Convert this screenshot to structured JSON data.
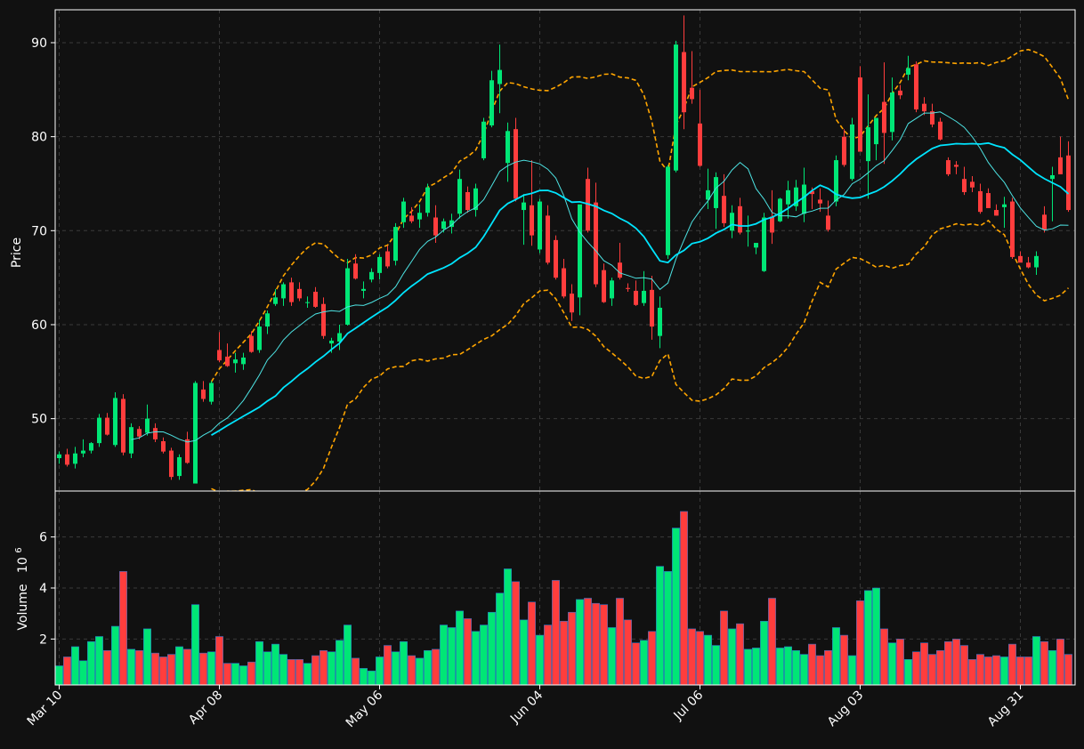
{
  "chart_data": {
    "type": "candlestick",
    "price_panel": {
      "ylabel": "Price",
      "ylim": [
        42.3,
        93.5
      ],
      "yticks": [
        50,
        60,
        70,
        80,
        90
      ],
      "grid": true
    },
    "volume_panel": {
      "ylabel": "Volume",
      "ylabel_multiplier": "10",
      "ylabel_exponent": "6",
      "ylim": [
        0.2,
        7.8
      ],
      "yticks": [
        2,
        4,
        6
      ],
      "grid": true
    },
    "x_tick_labels": [
      "Mar 10",
      "Apr 08",
      "May 06",
      "Jun 04",
      "Jul 06",
      "Aug 03",
      "Aug 31"
    ],
    "x_tick_indices": [
      0,
      20,
      40,
      60,
      80,
      100,
      120
    ],
    "series_styles": {
      "up_color": "#00e676",
      "down_color": "#ff3d3d",
      "bollinger_color": "#ffa500",
      "ma_short_color": "#4de3e3",
      "ma_long_color": "#00e5ff"
    },
    "ohlc": [
      [
        45.8,
        46.5,
        45.2,
        46.2
      ],
      [
        46.2,
        46.8,
        44.9,
        45.1
      ],
      [
        45.2,
        47.0,
        44.7,
        46.3
      ],
      [
        46.3,
        47.8,
        45.9,
        46.6
      ],
      [
        46.6,
        47.5,
        46.3,
        47.4
      ],
      [
        47.4,
        50.5,
        47.0,
        50.1
      ],
      [
        50.1,
        50.6,
        48.2,
        48.3
      ],
      [
        47.2,
        52.8,
        47.0,
        52.2
      ],
      [
        52.1,
        52.6,
        46.1,
        46.4
      ],
      [
        46.3,
        49.5,
        45.8,
        49.1
      ],
      [
        48.9,
        49.2,
        47.8,
        48.1
      ],
      [
        48.5,
        51.5,
        48.2,
        50.0
      ],
      [
        49.0,
        49.5,
        47.5,
        47.8
      ],
      [
        47.6,
        48.0,
        46.3,
        46.5
      ],
      [
        46.6,
        46.9,
        43.5,
        43.8
      ],
      [
        43.9,
        46.2,
        43.5,
        45.9
      ],
      [
        47.8,
        48.6,
        45.2,
        45.3
      ],
      [
        43.1,
        54.0,
        43.1,
        53.8
      ],
      [
        53.1,
        54.0,
        51.8,
        52.1
      ],
      [
        51.8,
        54.0,
        51.5,
        53.8
      ],
      [
        57.3,
        59.2,
        56.0,
        56.2
      ],
      [
        56.6,
        58.0,
        55.5,
        55.6
      ],
      [
        55.9,
        57.0,
        54.9,
        56.3
      ],
      [
        55.8,
        57.0,
        55.2,
        56.5
      ],
      [
        58.8,
        59.3,
        57.0,
        57.1
      ],
      [
        57.3,
        60.5,
        57.0,
        59.8
      ],
      [
        59.8,
        61.5,
        59.0,
        61.2
      ],
      [
        62.2,
        63.8,
        62.0,
        62.9
      ],
      [
        62.8,
        64.5,
        62.0,
        64.3
      ],
      [
        64.5,
        65.0,
        62.0,
        62.4
      ],
      [
        63.8,
        64.5,
        62.5,
        62.8
      ],
      [
        62.3,
        63.0,
        61.8,
        62.4
      ],
      [
        63.5,
        64.0,
        61.8,
        61.9
      ],
      [
        62.2,
        62.9,
        58.5,
        58.8
      ],
      [
        58.0,
        58.6,
        57.0,
        58.3
      ],
      [
        58.2,
        60.0,
        57.3,
        59.1
      ],
      [
        60.0,
        67.0,
        59.9,
        66.0
      ],
      [
        66.5,
        67.5,
        64.8,
        64.9
      ],
      [
        63.6,
        64.6,
        62.8,
        63.8
      ],
      [
        64.8,
        66.0,
        64.5,
        65.6
      ],
      [
        65.5,
        67.5,
        64.8,
        67.2
      ],
      [
        67.8,
        68.4,
        66.0,
        66.2
      ],
      [
        66.8,
        70.8,
        66.3,
        70.4
      ],
      [
        70.9,
        73.5,
        70.3,
        73.1
      ],
      [
        71.6,
        72.5,
        70.8,
        71.0
      ],
      [
        71.2,
        72.8,
        70.3,
        71.9
      ],
      [
        71.9,
        75.0,
        71.5,
        74.6
      ],
      [
        71.4,
        72.7,
        68.7,
        69.5
      ],
      [
        70.2,
        71.3,
        69.8,
        71.0
      ],
      [
        70.4,
        71.8,
        69.7,
        71.1
      ],
      [
        71.8,
        76.5,
        71.3,
        75.5
      ],
      [
        74.1,
        74.7,
        71.9,
        72.2
      ],
      [
        72.2,
        75.0,
        71.5,
        74.5
      ],
      [
        77.7,
        82.0,
        77.5,
        81.6
      ],
      [
        81.2,
        87.0,
        81.0,
        86.0
      ],
      [
        85.6,
        89.8,
        82.5,
        87.1
      ],
      [
        77.2,
        81.5,
        75.2,
        80.6
      ],
      [
        80.8,
        82.0,
        73.1,
        73.4
      ],
      [
        72.2,
        73.9,
        68.5,
        73.0
      ],
      [
        72.7,
        77.5,
        68.4,
        69.5
      ],
      [
        68.0,
        73.4,
        67.6,
        73.1
      ],
      [
        71.6,
        72.7,
        66.4,
        66.6
      ],
      [
        69.0,
        69.5,
        64.8,
        65.0
      ],
      [
        66.0,
        67.0,
        62.8,
        63.0
      ],
      [
        63.3,
        64.3,
        60.4,
        61.3
      ],
      [
        62.9,
        72.5,
        61.0,
        72.8
      ],
      [
        75.5,
        76.7,
        69.8,
        70.0
      ],
      [
        73.0,
        75.1,
        64.0,
        64.3
      ],
      [
        65.8,
        66.5,
        62.3,
        62.4
      ],
      [
        62.8,
        65.0,
        62.0,
        64.7
      ],
      [
        66.6,
        68.7,
        64.8,
        65.0
      ],
      [
        63.9,
        64.4,
        63.5,
        63.8
      ],
      [
        63.6,
        64.7,
        62.0,
        62.1
      ],
      [
        62.3,
        65.7,
        62.0,
        63.6
      ],
      [
        63.7,
        65.2,
        58.4,
        59.8
      ],
      [
        58.8,
        63.0,
        57.5,
        61.8
      ],
      [
        67.4,
        77.0,
        67.0,
        76.8
      ],
      [
        76.4,
        90.2,
        76.2,
        89.8
      ],
      [
        89.0,
        92.9,
        80.8,
        82.6
      ],
      [
        85.2,
        89.1,
        83.5,
        84.0
      ],
      [
        81.4,
        85.0,
        76.8,
        76.9
      ],
      [
        73.3,
        76.6,
        72.3,
        74.3
      ],
      [
        72.4,
        76.2,
        70.2,
        75.7
      ],
      [
        73.7,
        76.0,
        70.4,
        70.8
      ],
      [
        70.0,
        72.7,
        69.2,
        71.9
      ],
      [
        72.6,
        73.5,
        69.6,
        69.8
      ],
      [
        70.0,
        71.6,
        68.3,
        70.0
      ],
      [
        68.2,
        68.6,
        67.5,
        68.7
      ],
      [
        65.7,
        71.9,
        65.6,
        71.4
      ],
      [
        71.5,
        74.3,
        68.6,
        69.8
      ],
      [
        71.0,
        73.5,
        70.9,
        73.4
      ],
      [
        72.8,
        75.3,
        71.3,
        74.3
      ],
      [
        72.6,
        75.4,
        72.1,
        74.6
      ],
      [
        71.8,
        76.7,
        70.9,
        74.9
      ],
      [
        74.2,
        74.6,
        72.3,
        73.9
      ],
      [
        73.3,
        74.5,
        72.0,
        72.9
      ],
      [
        71.6,
        73.2,
        69.9,
        70.1
      ],
      [
        73.1,
        78.0,
        72.6,
        77.5
      ],
      [
        80.0,
        80.8,
        76.8,
        77.0
      ],
      [
        75.5,
        82.0,
        75.3,
        81.3
      ],
      [
        86.3,
        87.5,
        78.5,
        78.4
      ],
      [
        77.4,
        84.5,
        73.4,
        81.0
      ],
      [
        79.2,
        82.0,
        77.5,
        82.0
      ],
      [
        83.7,
        87.9,
        77.1,
        80.4
      ],
      [
        80.5,
        86.3,
        79.6,
        84.7
      ],
      [
        84.9,
        85.5,
        84.0,
        84.4
      ],
      [
        86.6,
        88.6,
        86.0,
        87.3
      ],
      [
        87.7,
        88.0,
        82.6,
        82.9
      ],
      [
        83.5,
        84.2,
        82.3,
        82.7
      ],
      [
        82.7,
        83.5,
        81.0,
        81.3
      ],
      [
        81.6,
        82.0,
        79.6,
        79.7
      ],
      [
        77.5,
        77.8,
        75.8,
        76.0
      ],
      [
        77.0,
        77.4,
        76.0,
        76.8
      ],
      [
        75.5,
        76.8,
        73.8,
        74.1
      ],
      [
        75.2,
        75.8,
        74.1,
        74.6
      ],
      [
        74.2,
        75.0,
        71.8,
        72.0
      ],
      [
        74.0,
        74.5,
        72.5,
        72.4
      ],
      [
        72.2,
        72.8,
        71.6,
        71.6
      ],
      [
        72.5,
        73.6,
        70.3,
        72.8
      ],
      [
        73.1,
        73.5,
        67.0,
        67.2
      ],
      [
        67.3,
        67.8,
        66.9,
        66.6
      ],
      [
        66.6,
        67.2,
        66.0,
        66.1
      ],
      [
        66.1,
        67.8,
        65.3,
        67.3
      ],
      [
        71.7,
        72.6,
        69.8,
        70.1
      ],
      [
        75.5,
        76.8,
        71.0,
        75.9
      ],
      [
        77.8,
        80.0,
        76.3,
        76.0
      ],
      [
        78.0,
        79.5,
        72.0,
        72.2
      ]
    ],
    "volume_millions": [
      0.95,
      1.3,
      1.7,
      1.15,
      1.9,
      2.1,
      1.55,
      2.5,
      4.65,
      1.6,
      1.55,
      2.4,
      1.45,
      1.3,
      1.4,
      1.7,
      1.6,
      3.35,
      1.45,
      1.5,
      2.1,
      1.05,
      1.05,
      0.95,
      1.1,
      1.9,
      1.5,
      1.8,
      1.4,
      1.2,
      1.2,
      1.05,
      1.35,
      1.55,
      1.5,
      1.95,
      2.55,
      1.25,
      0.85,
      0.75,
      1.3,
      1.75,
      1.5,
      1.9,
      1.35,
      1.25,
      1.55,
      1.6,
      2.55,
      2.45,
      3.1,
      2.8,
      2.3,
      2.55,
      3.05,
      3.8,
      4.75,
      4.25,
      2.75,
      3.45,
      2.15,
      2.55,
      4.3,
      2.7,
      3.05,
      3.55,
      3.6,
      3.4,
      3.35,
      2.45,
      3.6,
      2.75,
      1.85,
      1.95,
      2.3,
      4.85,
      4.65,
      6.35,
      7.0,
      2.4,
      2.3,
      2.15,
      1.75,
      3.1,
      2.4,
      2.6,
      1.6,
      1.65,
      2.7,
      3.6,
      1.65,
      1.7,
      1.55,
      1.4,
      1.8,
      1.35,
      1.55,
      2.45,
      2.15,
      1.35,
      3.5,
      3.9,
      4.0,
      2.4,
      1.85,
      2.0,
      1.2,
      1.5,
      1.85,
      1.4,
      1.55,
      1.9,
      2.0,
      1.75,
      1.2,
      1.4,
      1.3,
      1.35,
      1.3,
      1.8,
      1.3,
      1.3,
      2.1,
      1.9,
      1.55,
      2.0,
      1.4
    ]
  }
}
